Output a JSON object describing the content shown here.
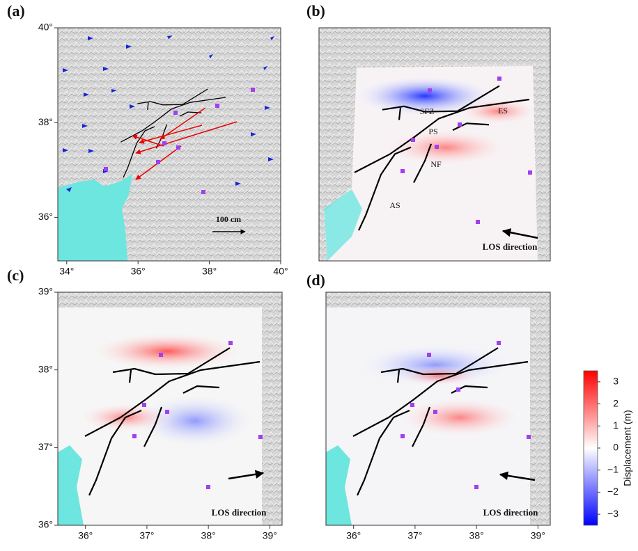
{
  "panels": [
    {
      "label": "(a)",
      "xlim": [
        33.75,
        40
      ],
      "ylim": [
        35.08,
        40
      ],
      "xticks": [
        {
          "value": 34,
          "label": "34°"
        },
        {
          "value": 36,
          "label": "36°"
        },
        {
          "value": 38,
          "label": "38°"
        },
        {
          "value": 40,
          "label": "40°"
        }
      ],
      "yticks": [
        {
          "value": 36,
          "label": "36°"
        },
        {
          "value": 38,
          "label": "38°"
        },
        {
          "value": 40,
          "label": "40°"
        }
      ],
      "scale": "100 cm"
    },
    {
      "label": "(b)",
      "fault_labels": [
        "SFZ",
        "ES",
        "PS",
        "NF",
        "AS"
      ],
      "los": "LOS direction"
    },
    {
      "label": "(c)",
      "xlim": [
        35.55,
        39.2
      ],
      "ylim": [
        36,
        39
      ],
      "xticks": [
        {
          "value": 36,
          "label": "36°"
        },
        {
          "value": 37,
          "label": "37°"
        },
        {
          "value": 38,
          "label": "38°"
        },
        {
          "value": 39,
          "label": "39°"
        }
      ],
      "yticks": [
        {
          "value": 36,
          "label": "36°"
        },
        {
          "value": 37,
          "label": "37°"
        },
        {
          "value": 38,
          "label": "38°"
        },
        {
          "value": 39,
          "label": "39°"
        }
      ],
      "los": "LOS direction"
    },
    {
      "label": "(d)",
      "xlim": [
        35.55,
        39.2
      ],
      "xticks": [
        {
          "value": 36,
          "label": "36°"
        },
        {
          "value": 37,
          "label": "37°"
        },
        {
          "value": 38,
          "label": "38°"
        },
        {
          "value": 39,
          "label": "39°"
        }
      ],
      "los": "LOS direction"
    }
  ],
  "colorbar": {
    "label": "Displacement (m)",
    "ylim": [
      -3.5,
      3.5
    ],
    "ticks": [
      3,
      2,
      1,
      0,
      {
        "value": -1,
        "label": "−1"
      },
      {
        "value": -2,
        "label": "−2"
      },
      {
        "value": -3,
        "label": "−3"
      }
    ],
    "colors": [
      "#ff0000",
      "#ffffff",
      "#0000ff"
    ]
  }
}
